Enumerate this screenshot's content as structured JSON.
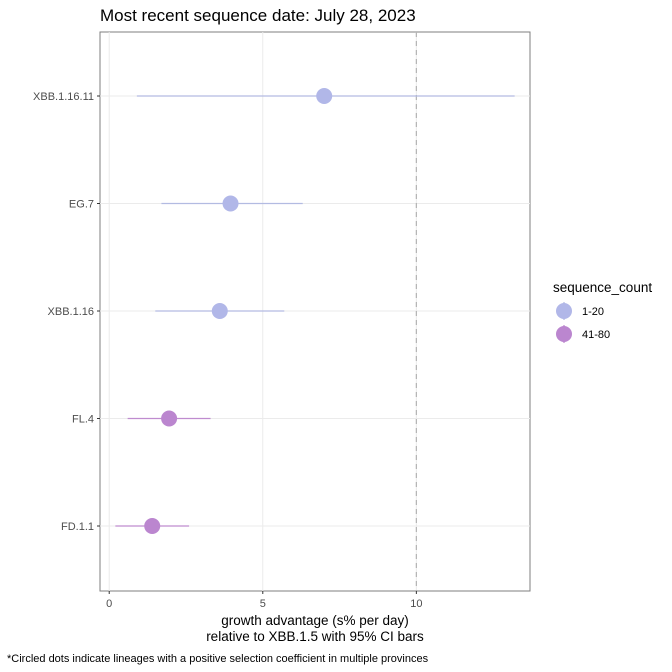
{
  "chart_data": {
    "type": "scatter",
    "title": "Most recent sequence date: July 28, 2023",
    "xlabel_line1": "growth advantage (s% per day)",
    "xlabel_line2": "relative to  XBB.1.5  with 95% CI bars",
    "ylabel": "",
    "xlim": [
      -0.3,
      13.7
    ],
    "x_ticks": [
      0,
      5,
      10
    ],
    "categories": [
      "XBB.1.16.11",
      "EG.7",
      "XBB.1.16",
      "FL.4",
      "FD.1.1"
    ],
    "points": [
      {
        "lineage": "XBB.1.16.11",
        "value": 7.0,
        "ci_low": 0.9,
        "ci_high": 13.2,
        "sequence_count": "1-20"
      },
      {
        "lineage": "EG.7",
        "value": 3.95,
        "ci_low": 1.7,
        "ci_high": 6.3,
        "sequence_count": "1-20"
      },
      {
        "lineage": "XBB.1.16",
        "value": 3.6,
        "ci_low": 1.5,
        "ci_high": 5.7,
        "sequence_count": "1-20"
      },
      {
        "lineage": "FL.4",
        "value": 1.95,
        "ci_low": 0.6,
        "ci_high": 3.3,
        "sequence_count": "41-80"
      },
      {
        "lineage": "FD.1.1",
        "value": 1.4,
        "ci_low": 0.2,
        "ci_high": 2.6,
        "sequence_count": "41-80"
      }
    ],
    "reference_line": {
      "x": 10,
      "style": "dashed"
    },
    "grid": true,
    "legend": {
      "title": "sequence_count",
      "position": "right",
      "entries": [
        {
          "label": "1-20",
          "color": "#b1b7e8",
          "line_color": "#b3bbe2"
        },
        {
          "label": "41-80",
          "color": "#bb86cf",
          "line_color": "#bf8ccf"
        }
      ]
    },
    "footnote": "*Circled dots indicate lineages with a positive selection coefficient in multiple provinces"
  }
}
